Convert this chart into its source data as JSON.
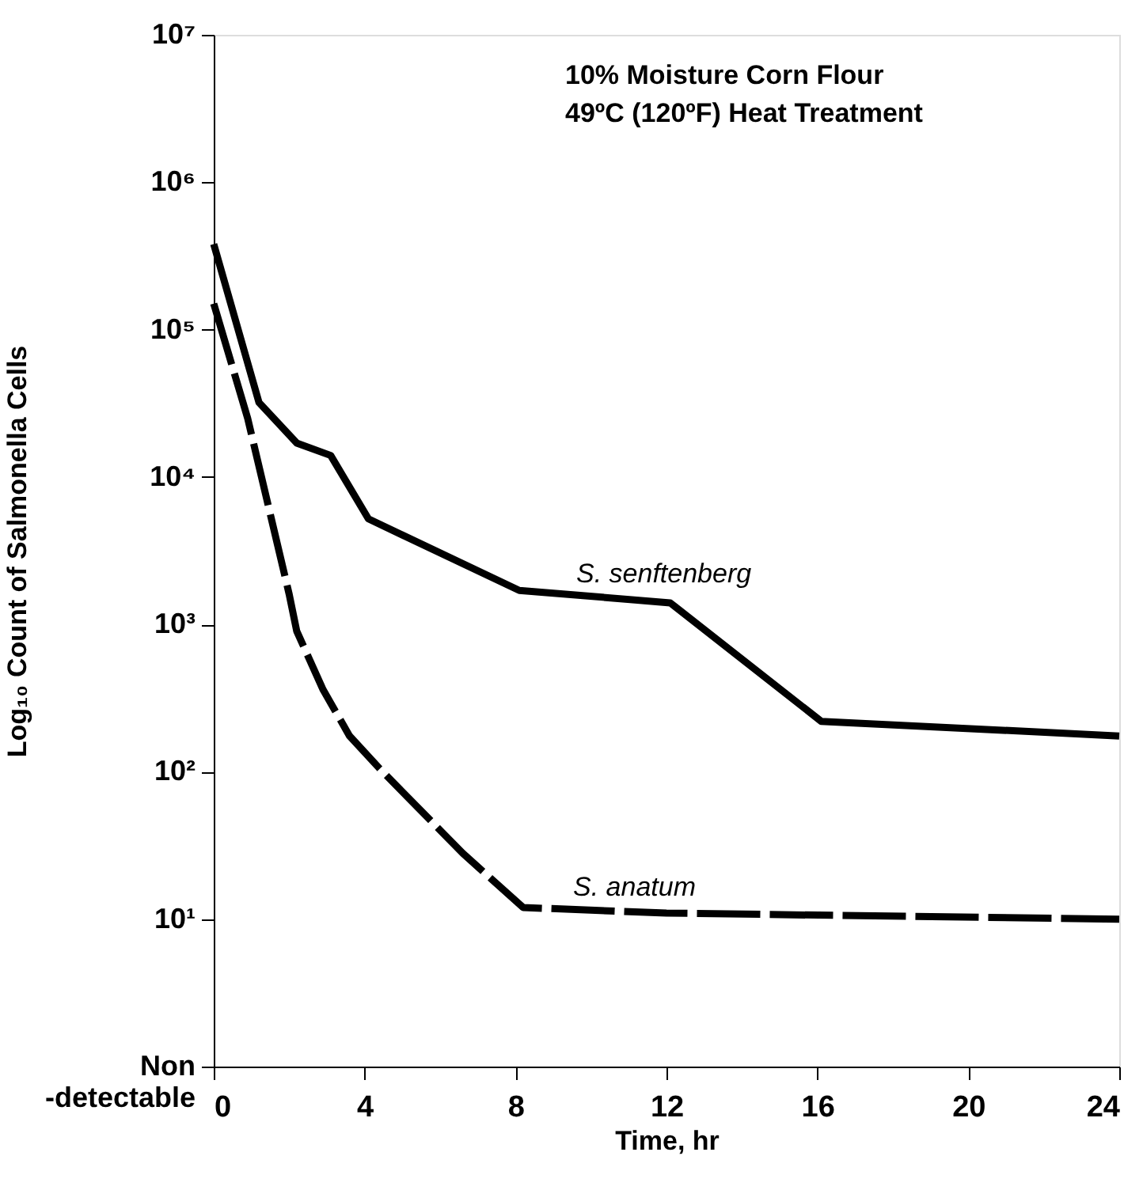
{
  "chart_data": {
    "type": "line",
    "xlabel": "Time, hr",
    "ylabel": "Log₁₀ Count of Salmonella Cells",
    "log": "y",
    "xlim": [
      0,
      24
    ],
    "xticks": [
      0,
      4,
      8,
      12,
      16,
      20,
      24
    ],
    "ylim": [
      1,
      10000000
    ],
    "yticks": [
      {
        "value": 1,
        "label": "Non -detectable"
      },
      {
        "value": 10,
        "label": "10¹"
      },
      {
        "value": 100,
        "label": "10²"
      },
      {
        "value": 1000,
        "label": "10³"
      },
      {
        "value": 10000,
        "label": "10⁴"
      },
      {
        "value": 100000,
        "label": "10⁵"
      },
      {
        "value": 1000000,
        "label": "10⁶"
      },
      {
        "value": 10000000,
        "label": "10⁷"
      }
    ],
    "grid": false,
    "marker": "none",
    "series": [
      {
        "color": "#000000",
        "line_style": "solid",
        "x": [
          0,
          1.2,
          2.2,
          3.1,
          4.1,
          8.1,
          12.1,
          16.1,
          24
        ],
        "values": [
          380000,
          32000,
          17000,
          14000,
          5200,
          1700,
          1400,
          220,
          175
        ]
      },
      {
        "color": "#000000",
        "line_style": "dashed",
        "x": [
          0,
          0.9,
          2.0,
          2.2,
          2.9,
          3.6,
          4.4,
          6.6,
          8.2,
          12,
          24
        ],
        "values": [
          150000,
          25000,
          1600,
          900,
          360,
          175,
          105,
          28,
          12,
          11,
          10
        ]
      }
    ],
    "annotations": [
      "10% Moisture Corn Flour",
      "49ºC (120ºF) Heat Treatment",
      "S. senftenberg",
      "S. anatum"
    ]
  }
}
